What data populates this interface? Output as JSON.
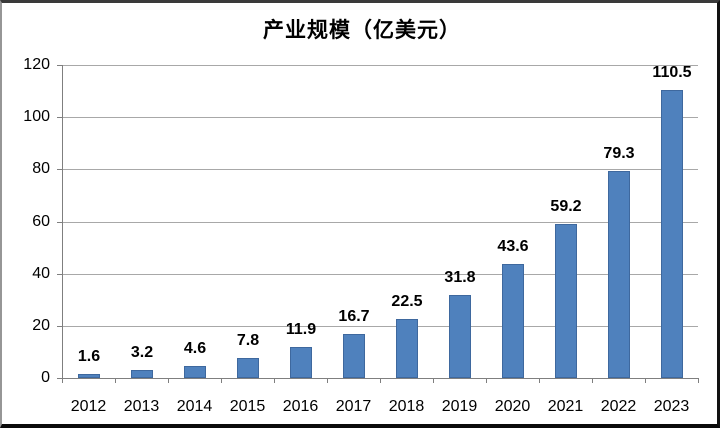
{
  "chart_data": {
    "type": "bar",
    "title": "产业规模（亿美元）",
    "categories": [
      "2012",
      "2013",
      "2014",
      "2015",
      "2016",
      "2017",
      "2018",
      "2019",
      "2020",
      "2021",
      "2022",
      "2023"
    ],
    "values": [
      1.6,
      3.2,
      4.6,
      7.8,
      11.9,
      16.7,
      22.5,
      31.8,
      43.6,
      59.2,
      79.3,
      110.5
    ],
    "value_labels": [
      "1.6",
      "3.2",
      "4.6",
      "7.8",
      "11.9",
      "16.7",
      "22.5",
      "31.8",
      "43.6",
      "59.2",
      "79.3",
      "110.5"
    ],
    "xlabel": "",
    "ylabel": "",
    "ylim": [
      0,
      120
    ],
    "y_ticks": [
      0,
      20,
      40,
      60,
      80,
      100,
      120
    ],
    "grid": "horizontal",
    "legend": "none",
    "bar_color": "#4f81bd",
    "bar_border_color": "#3e689e",
    "grid_color": "#a8a8a8",
    "axis_color": "#7f7f7f",
    "text_color": "#000000",
    "background_color": "#ffffff"
  }
}
